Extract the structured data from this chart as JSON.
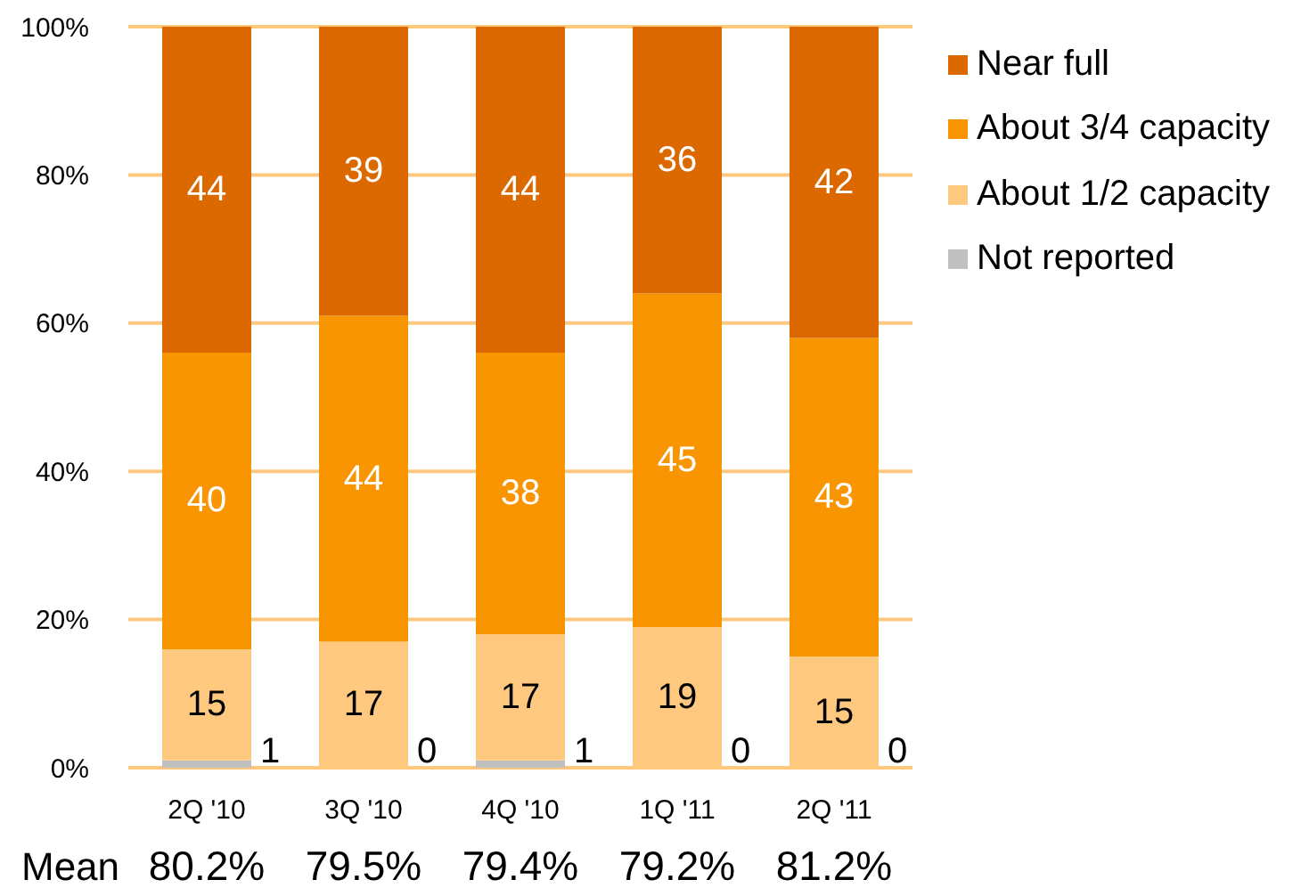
{
  "chart_data": {
    "type": "bar",
    "stacked": true,
    "categories": [
      "2Q '10",
      "3Q '10",
      "4Q '10",
      "1Q '11",
      "2Q '11"
    ],
    "series": [
      {
        "name": "Not reported",
        "color": "#c0c0c0",
        "values": [
          1,
          0,
          1,
          0,
          0
        ]
      },
      {
        "name": "About 1/2 capacity",
        "color": "#ffc87f",
        "values": [
          15,
          17,
          17,
          19,
          15
        ]
      },
      {
        "name": "About 3/4 capacity",
        "color": "#f89500",
        "values": [
          40,
          44,
          38,
          45,
          43
        ]
      },
      {
        "name": "Near full",
        "color": "#dc6900",
        "values": [
          44,
          39,
          44,
          36,
          42
        ]
      }
    ],
    "ylim": [
      0,
      100
    ],
    "yticks": [
      {
        "value": 0,
        "label": "0%"
      },
      {
        "value": 20,
        "label": "20%"
      },
      {
        "value": 40,
        "label": "40%"
      },
      {
        "value": 60,
        "label": "60%"
      },
      {
        "value": 80,
        "label": "80%"
      },
      {
        "value": 100,
        "label": "100%"
      }
    ],
    "grid": "y",
    "legend": "right",
    "data_labels": true,
    "annotations": [
      "Mean",
      "80.2%",
      "79.5%",
      "79.4%",
      "79.2%",
      "81.2%"
    ]
  }
}
